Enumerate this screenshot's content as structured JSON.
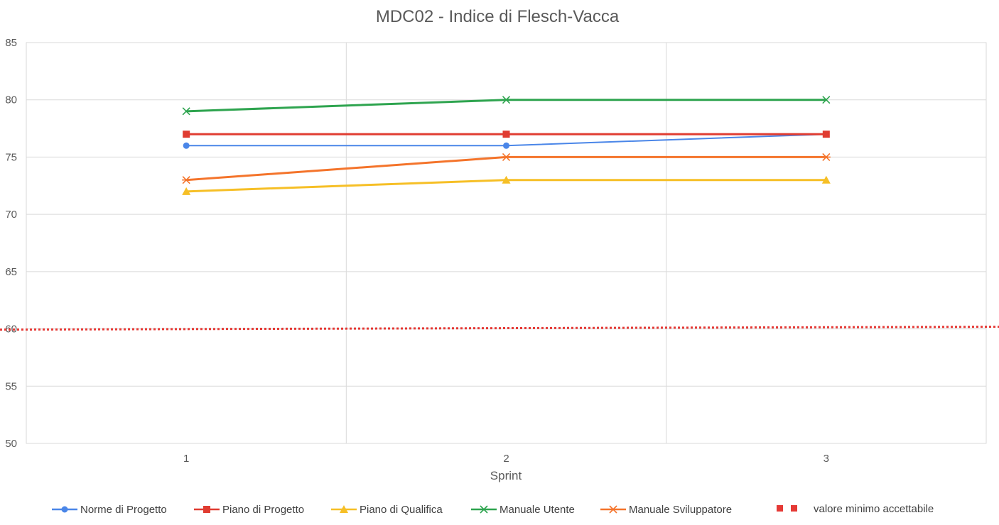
{
  "chart_data": {
    "type": "line",
    "title": "MDC02 - Indice di Flesch-Vacca",
    "xlabel": "Sprint",
    "ylabel": "",
    "categories": [
      "1",
      "2",
      "3"
    ],
    "ylim": [
      50,
      85
    ],
    "yticks": [
      50,
      55,
      60,
      65,
      70,
      75,
      80,
      85
    ],
    "grid": true,
    "legend_position": "bottom",
    "series": [
      {
        "name": "Norme di Progetto",
        "values": [
          76,
          76,
          77
        ],
        "color": "#4a86e8",
        "marker": "circle"
      },
      {
        "name": "Piano di Progetto",
        "values": [
          77,
          77,
          77
        ],
        "color": "#e03c31",
        "marker": "square"
      },
      {
        "name": "Piano di Qualifica",
        "values": [
          72,
          73,
          73
        ],
        "color": "#f6bf26",
        "marker": "triangle"
      },
      {
        "name": "Manuale Utente",
        "values": [
          79,
          80,
          80
        ],
        "color": "#2ea44f",
        "marker": "x"
      },
      {
        "name": "Manuale Sviluppatore",
        "values": [
          73,
          75,
          75
        ],
        "color": "#f4742b",
        "marker": "asterisk"
      }
    ],
    "threshold": {
      "name": "valore minimo accettabile",
      "value": 60,
      "color": "#e53935"
    }
  }
}
